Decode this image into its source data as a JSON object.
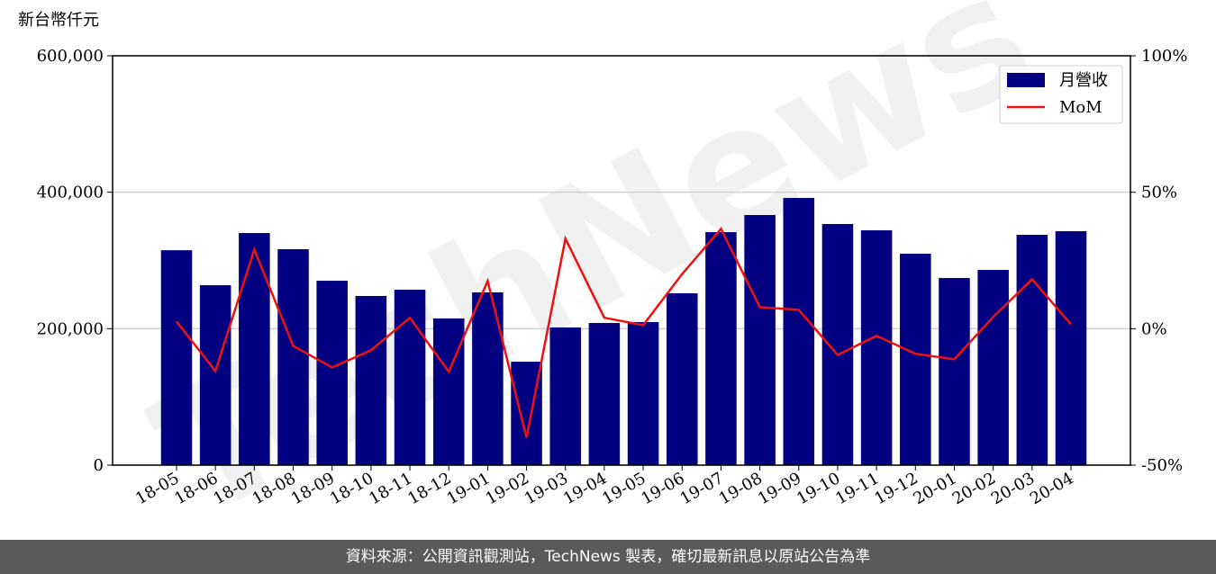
{
  "chart_data": {
    "type": "bar-line",
    "unit_label": "新台幣仟元",
    "watermark": "TechNews",
    "categories": [
      "18-05",
      "18-06",
      "18-07",
      "18-08",
      "18-09",
      "18-10",
      "18-11",
      "18-12",
      "19-01",
      "19-02",
      "19-03",
      "19-04",
      "19-05",
      "19-06",
      "19-07",
      "19-08",
      "19-09",
      "19-10",
      "19-11",
      "19-12",
      "20-01",
      "20-02",
      "20-03",
      "20-04"
    ],
    "series": [
      {
        "name": "月營收",
        "type": "bar",
        "color": "#000080",
        "values": [
          315000,
          263700,
          340200,
          316500,
          270300,
          247900,
          257100,
          215000,
          253200,
          151600,
          201800,
          208400,
          209700,
          251900,
          341500,
          366600,
          391600,
          353400,
          344200,
          309900,
          274300,
          286100,
          337600,
          342900
        ]
      },
      {
        "name": "MoM",
        "type": "line",
        "axis": "y2",
        "color": "#ee1111",
        "values": [
          2.6,
          -15.5,
          29,
          -6.3,
          -14.2,
          -7.9,
          4.0,
          -15.8,
          17.5,
          -39.9,
          33,
          4.0,
          1.3,
          20,
          36.6,
          7.9,
          6.9,
          -9.6,
          -2.6,
          -9.2,
          -11.2,
          4.3,
          18.1,
          1.6
        ]
      }
    ],
    "ylim": [
      0,
      600000
    ],
    "yticks": [
      0,
      {
        "value": 200000,
        "label": "200,000"
      },
      {
        "value": 400000,
        "label": "400,000"
      },
      {
        "value": 600000,
        "label": "600,000"
      }
    ],
    "y2lim": [
      -50,
      100
    ],
    "y2ticks": [
      {
        "value": -50,
        "label": "-50%"
      },
      {
        "value": 0,
        "label": "0%"
      },
      {
        "value": 50,
        "label": "50%"
      },
      {
        "value": 100,
        "label": "100%"
      }
    ],
    "grid": true,
    "legend": "upper right"
  },
  "footer": "資料來源：公開資訊觀測站，TechNews 製表，確切最新訊息以原站公告為準"
}
